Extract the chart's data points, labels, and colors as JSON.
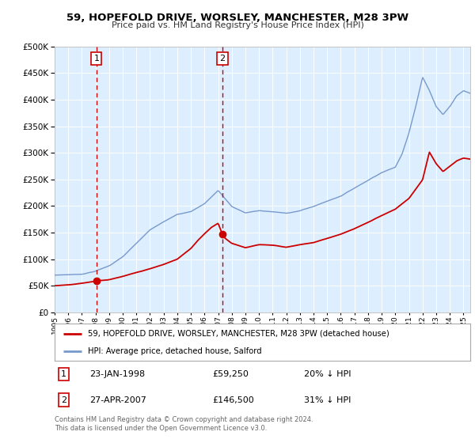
{
  "title": "59, HOPEFOLD DRIVE, WORSLEY, MANCHESTER, M28 3PW",
  "subtitle": "Price paid vs. HM Land Registry's House Price Index (HPI)",
  "background_color": "#ffffff",
  "plot_bg_color": "#ddeeff",
  "grid_color": "#ffffff",
  "sale1_date": 1998.07,
  "sale1_price": 59250,
  "sale2_date": 2007.32,
  "sale2_price": 146500,
  "hpi_color": "#7799cc",
  "price_color": "#cc0000",
  "dashed_color": "#cc0000",
  "legend_line1": "59, HOPEFOLD DRIVE, WORSLEY, MANCHESTER, M28 3PW (detached house)",
  "legend_line2": "HPI: Average price, detached house, Salford",
  "annotation1_date": "23-JAN-1998",
  "annotation1_price": "£59,250",
  "annotation1_hpi": "20% ↓ HPI",
  "annotation2_date": "27-APR-2007",
  "annotation2_price": "£146,500",
  "annotation2_hpi": "31% ↓ HPI",
  "footer": "Contains HM Land Registry data © Crown copyright and database right 2024.\nThis data is licensed under the Open Government Licence v3.0.",
  "xmin": 1995.0,
  "xmax": 2025.5,
  "ymin": 0,
  "ymax": 500000,
  "yticks": [
    0,
    50000,
    100000,
    150000,
    200000,
    250000,
    300000,
    350000,
    400000,
    450000,
    500000
  ],
  "hpi_keypoints_x": [
    1995.0,
    1996.0,
    1997.0,
    1998.0,
    1999.0,
    2000.0,
    2001.0,
    2002.0,
    2003.0,
    2004.0,
    2005.0,
    2006.0,
    2007.0,
    2007.5,
    2008.0,
    2009.0,
    2010.0,
    2011.0,
    2012.0,
    2013.0,
    2014.0,
    2015.0,
    2016.0,
    2017.0,
    2018.0,
    2019.0,
    2020.0,
    2020.5,
    2021.0,
    2021.5,
    2022.0,
    2022.5,
    2023.0,
    2023.5,
    2024.0,
    2024.5,
    2025.0,
    2025.5
  ],
  "hpi_keypoints_y": [
    70000,
    71000,
    72000,
    78000,
    88000,
    105000,
    130000,
    155000,
    170000,
    185000,
    190000,
    205000,
    230000,
    215000,
    200000,
    188000,
    192000,
    190000,
    187000,
    192000,
    200000,
    210000,
    220000,
    235000,
    250000,
    265000,
    275000,
    300000,
    340000,
    390000,
    445000,
    420000,
    390000,
    375000,
    390000,
    410000,
    420000,
    415000
  ],
  "price_keypoints_x": [
    1995.0,
    1996.0,
    1997.0,
    1998.0,
    1998.1,
    1999.0,
    2000.0,
    2001.0,
    2002.0,
    2003.0,
    2004.0,
    2005.0,
    2005.5,
    2006.0,
    2006.5,
    2007.0,
    2007.32,
    2007.5,
    2008.0,
    2009.0,
    2010.0,
    2011.0,
    2012.0,
    2013.0,
    2014.0,
    2015.0,
    2016.0,
    2017.0,
    2018.0,
    2019.0,
    2020.0,
    2021.0,
    2022.0,
    2022.5,
    2023.0,
    2023.5,
    2024.0,
    2024.5,
    2025.0,
    2025.5
  ],
  "price_keypoints_y": [
    50000,
    52000,
    55000,
    59250,
    60000,
    62000,
    68000,
    75000,
    82000,
    90000,
    100000,
    120000,
    135000,
    148000,
    160000,
    168000,
    146500,
    140000,
    130000,
    122000,
    128000,
    127000,
    123000,
    128000,
    132000,
    140000,
    148000,
    158000,
    170000,
    183000,
    195000,
    215000,
    250000,
    302000,
    280000,
    265000,
    275000,
    285000,
    290000,
    288000
  ]
}
